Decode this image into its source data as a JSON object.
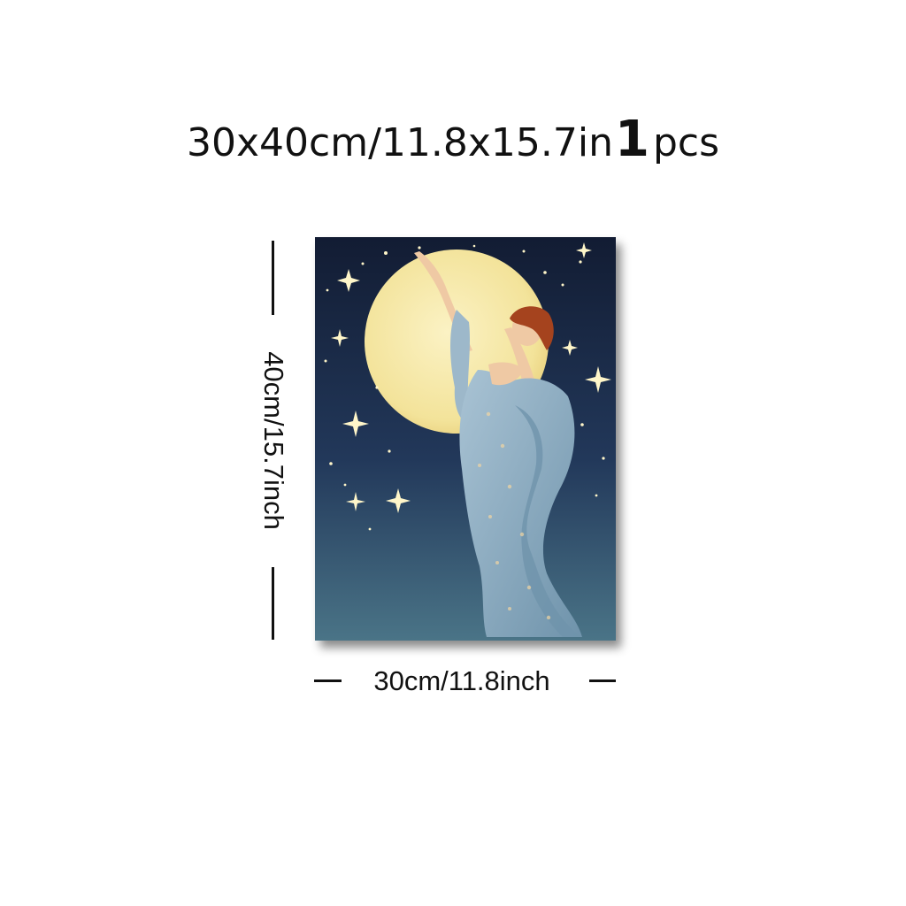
{
  "title": {
    "size_text": "30x40cm/11.8x15.7in",
    "quantity_number": "1",
    "quantity_unit": "pcs"
  },
  "dimensions": {
    "height_label": "40cm/15.7inch",
    "width_label": "30cm/11.8inch"
  },
  "artwork": {
    "palette": {
      "sky_top": "#121c33",
      "sky_bottom": "#3f6a82",
      "moon": "#f7eaa8",
      "dress": "#8fb0c6",
      "hair": "#a5431e",
      "skin": "#efc9a4",
      "star": "#fff6c9"
    }
  }
}
